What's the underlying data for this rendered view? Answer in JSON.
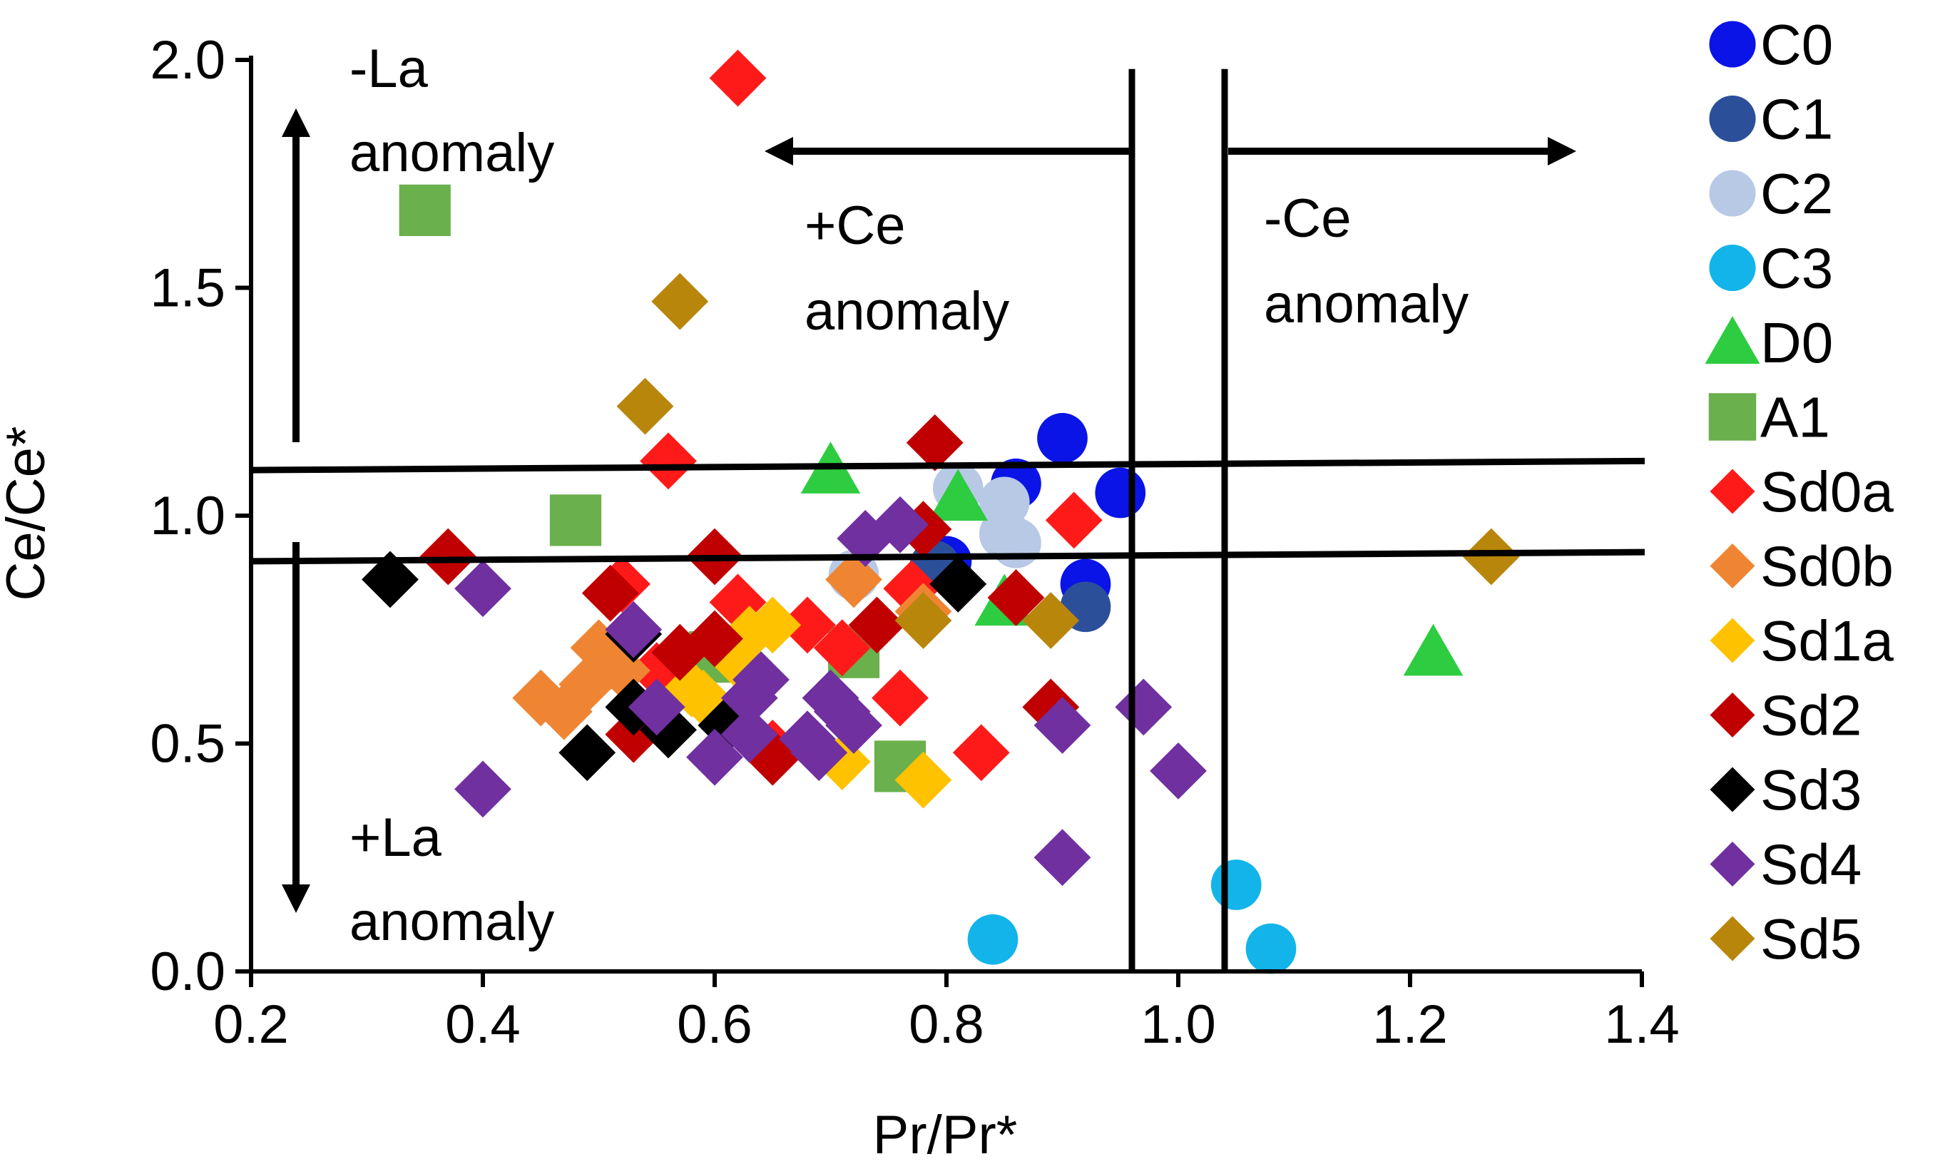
{
  "chart_data": {
    "type": "scatter",
    "title": "",
    "xlabel": "Pr/Pr*",
    "ylabel": "Ce/Ce*",
    "xlim": [
      0.2,
      1.4
    ],
    "ylim": [
      0.0,
      2.0
    ],
    "x_ticks": [
      "0.2",
      "0.4",
      "0.6",
      "0.8",
      "1.0",
      "1.2",
      "1.4"
    ],
    "y_ticks": [
      "0.0",
      "0.5",
      "1.0",
      "1.5",
      "2.0"
    ],
    "grid": false,
    "legend_position": "right",
    "reference_lines": {
      "vertical": [
        {
          "x_top": 0.96,
          "x_bottom": 0.96
        },
        {
          "x_top": 1.04,
          "x_bottom": 1.04
        }
      ],
      "horizontal": [
        {
          "y_left": 1.1,
          "y_right": 1.12
        },
        {
          "y_left": 0.9,
          "y_right": 0.92
        }
      ]
    },
    "annotations": {
      "neg_la": [
        "-La",
        "anomaly"
      ],
      "pos_la": [
        "+La",
        "anomaly"
      ],
      "pos_ce": [
        "+Ce",
        "anomaly"
      ],
      "neg_ce": [
        "-Ce",
        "anomaly"
      ]
    },
    "series": [
      {
        "name": "C0",
        "marker": "circle",
        "color": "#0a14e6",
        "points": [
          [
            0.86,
            1.07
          ],
          [
            0.9,
            1.17
          ],
          [
            0.95,
            1.05
          ],
          [
            0.92,
            0.85
          ],
          [
            0.8,
            0.9
          ]
        ]
      },
      {
        "name": "C1",
        "marker": "circle",
        "color": "#2c4f99",
        "points": [
          [
            0.92,
            0.8
          ],
          [
            0.79,
            0.89
          ]
        ]
      },
      {
        "name": "C2",
        "marker": "circle",
        "color": "#b8c9e6",
        "points": [
          [
            0.81,
            1.06
          ],
          [
            0.85,
            1.03
          ],
          [
            0.86,
            0.94
          ],
          [
            0.72,
            0.87
          ],
          [
            0.85,
            0.96
          ]
        ]
      },
      {
        "name": "C3",
        "marker": "circle",
        "color": "#12b4ea",
        "points": [
          [
            1.05,
            0.19
          ],
          [
            1.08,
            0.05
          ],
          [
            0.84,
            0.07
          ]
        ]
      },
      {
        "name": "D0",
        "marker": "triangle",
        "color": "#2ecc40",
        "points": [
          [
            0.7,
            1.1
          ],
          [
            0.81,
            1.04
          ],
          [
            1.22,
            0.7
          ],
          [
            0.85,
            0.81
          ]
        ]
      },
      {
        "name": "A1",
        "marker": "square",
        "color": "#6ab04c",
        "points": [
          [
            0.35,
            1.67
          ],
          [
            0.48,
            0.99
          ],
          [
            0.76,
            0.45
          ],
          [
            0.72,
            0.7
          ],
          [
            0.6,
            0.69
          ]
        ]
      },
      {
        "name": "Sd0a",
        "marker": "diamond",
        "color": "#ff1a1a",
        "points": [
          [
            0.62,
            1.96
          ],
          [
            0.56,
            1.12
          ],
          [
            0.91,
            0.99
          ],
          [
            0.52,
            0.85
          ],
          [
            0.62,
            0.81
          ],
          [
            0.68,
            0.76
          ],
          [
            0.71,
            0.71
          ],
          [
            0.77,
            0.84
          ],
          [
            0.76,
            0.6
          ],
          [
            0.83,
            0.48
          ],
          [
            0.55,
            0.66
          ],
          [
            0.65,
            0.49
          ]
        ]
      },
      {
        "name": "Sd0b",
        "marker": "diamond",
        "color": "#ef8533",
        "points": [
          [
            0.45,
            0.6
          ],
          [
            0.47,
            0.57
          ],
          [
            0.49,
            0.63
          ],
          [
            0.5,
            0.71
          ],
          [
            0.52,
            0.66
          ],
          [
            0.72,
            0.86
          ],
          [
            0.78,
            0.79
          ],
          [
            0.51,
            0.68
          ]
        ]
      },
      {
        "name": "Sd1a",
        "marker": "diamond",
        "color": "#ffc200",
        "points": [
          [
            0.58,
            0.62
          ],
          [
            0.59,
            0.6
          ],
          [
            0.63,
            0.74
          ],
          [
            0.65,
            0.76
          ],
          [
            0.71,
            0.46
          ],
          [
            0.78,
            0.42
          ],
          [
            0.62,
            0.68
          ]
        ]
      },
      {
        "name": "Sd2",
        "marker": "diamond",
        "color": "#c00000",
        "points": [
          [
            0.37,
            0.91
          ],
          [
            0.51,
            0.83
          ],
          [
            0.6,
            0.91
          ],
          [
            0.6,
            0.73
          ],
          [
            0.57,
            0.7
          ],
          [
            0.79,
            1.16
          ],
          [
            0.78,
            0.97
          ],
          [
            0.74,
            0.76
          ],
          [
            0.86,
            0.82
          ],
          [
            0.89,
            0.58
          ],
          [
            0.53,
            0.52
          ],
          [
            0.65,
            0.47
          ]
        ]
      },
      {
        "name": "Sd3",
        "marker": "diamond",
        "color": "#000000",
        "points": [
          [
            0.32,
            0.86
          ],
          [
            0.49,
            0.48
          ],
          [
            0.53,
            0.58
          ],
          [
            0.56,
            0.53
          ],
          [
            0.61,
            0.54
          ],
          [
            0.81,
            0.85
          ],
          [
            0.53,
            0.74
          ]
        ]
      },
      {
        "name": "Sd4",
        "marker": "diamond",
        "color": "#7030a0",
        "points": [
          [
            0.4,
            0.84
          ],
          [
            0.4,
            0.4
          ],
          [
            0.53,
            0.75
          ],
          [
            0.55,
            0.58
          ],
          [
            0.6,
            0.47
          ],
          [
            0.63,
            0.52
          ],
          [
            0.63,
            0.6
          ],
          [
            0.64,
            0.64
          ],
          [
            0.68,
            0.51
          ],
          [
            0.69,
            0.48
          ],
          [
            0.7,
            0.6
          ],
          [
            0.71,
            0.57
          ],
          [
            0.72,
            0.54
          ],
          [
            0.73,
            0.95
          ],
          [
            0.76,
            0.98
          ],
          [
            0.9,
            0.54
          ],
          [
            0.97,
            0.58
          ],
          [
            1.0,
            0.44
          ],
          [
            0.9,
            0.25
          ]
        ]
      },
      {
        "name": "Sd5",
        "marker": "diamond",
        "color": "#b8860b",
        "points": [
          [
            0.57,
            1.47
          ],
          [
            0.54,
            1.24
          ],
          [
            0.78,
            0.77
          ],
          [
            0.89,
            0.77
          ],
          [
            1.27,
            0.91
          ]
        ]
      }
    ]
  }
}
